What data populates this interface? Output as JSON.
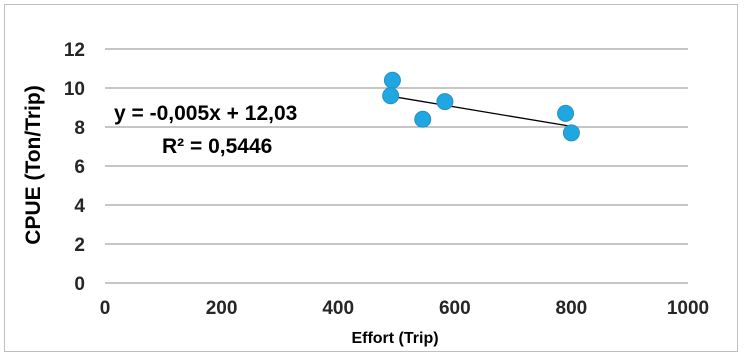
{
  "chart_data": {
    "type": "scatter",
    "title": "",
    "xlabel": "Effort (Trip)",
    "ylabel": "CPUE (Ton/Trip)",
    "xlim": [
      0,
      1000
    ],
    "ylim": [
      0,
      12
    ],
    "x_ticks": [
      "0",
      "200",
      "400",
      "600",
      "800",
      "1000"
    ],
    "y_ticks": [
      "0",
      "2",
      "4",
      "6",
      "8",
      "10",
      "12"
    ],
    "grid": "horizontal",
    "marker_color": "#1ea7e1",
    "points": [
      {
        "x": 493,
        "y": 10.4
      },
      {
        "x": 490,
        "y": 9.6
      },
      {
        "x": 545,
        "y": 8.4
      },
      {
        "x": 583,
        "y": 9.3
      },
      {
        "x": 790,
        "y": 8.7
      },
      {
        "x": 800,
        "y": 7.7
      }
    ],
    "trendline": {
      "slope": -0.005,
      "intercept": 12.03,
      "x_range": [
        490,
        800
      ],
      "equation": "y = -0,005x + 12,03",
      "r_squared": "R² = 0,5446"
    }
  }
}
